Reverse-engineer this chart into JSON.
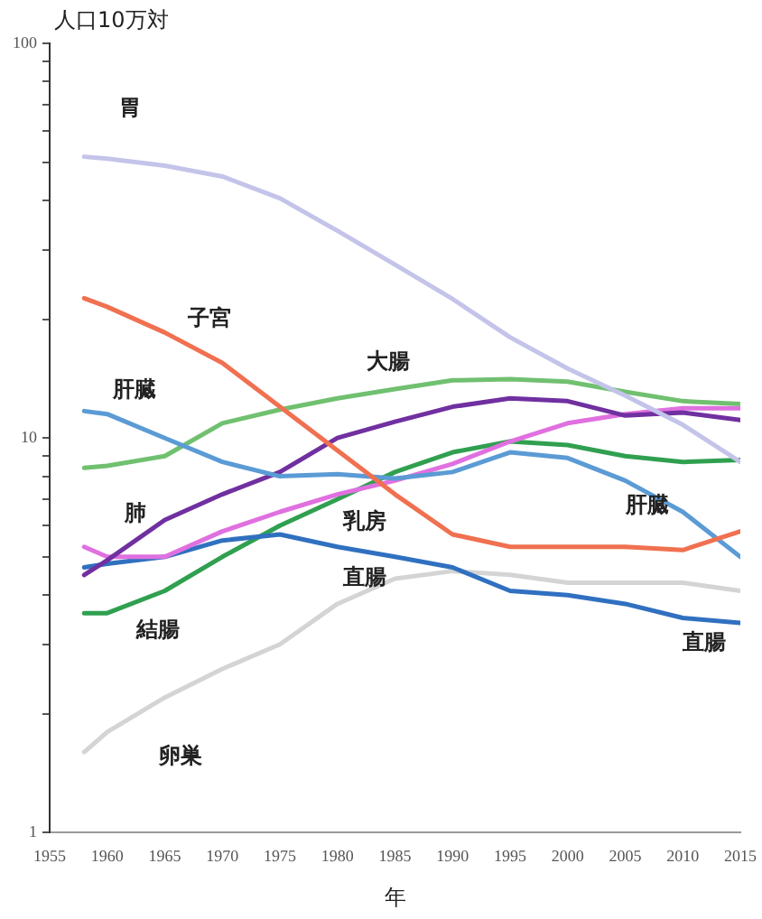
{
  "chart_data": {
    "type": "line",
    "ylabel": "人口10万対",
    "xlabel": "年",
    "x": [
      1958,
      1960,
      1965,
      1970,
      1975,
      1980,
      1985,
      1990,
      1995,
      2000,
      2005,
      2010,
      2015
    ],
    "xlim": [
      1955,
      2015
    ],
    "xticks": [
      1955,
      1960,
      1965,
      1970,
      1975,
      1980,
      1985,
      1990,
      1995,
      2000,
      2005,
      2010,
      2015
    ],
    "ylim": [
      1,
      100
    ],
    "log": true,
    "yticks": [
      1,
      {
        "value": 2,
        "label": null
      },
      {
        "value": 3,
        "label": null
      },
      {
        "value": 4,
        "label": null
      },
      {
        "value": 5,
        "label": null
      },
      {
        "value": 6,
        "label": null
      },
      {
        "value": 7,
        "label": null
      },
      {
        "value": 8,
        "label": null
      },
      {
        "value": 9,
        "label": null
      },
      10,
      {
        "value": 20,
        "label": null
      },
      {
        "value": 30,
        "label": null
      },
      {
        "value": 40,
        "label": null
      },
      {
        "value": 50,
        "label": null
      },
      {
        "value": 60,
        "label": null
      },
      {
        "value": 70,
        "label": null
      },
      {
        "value": 80,
        "label": null
      },
      {
        "value": 90,
        "label": null
      },
      100
    ],
    "grid": false,
    "legend": false,
    "marker": "none",
    "line_style": "solid",
    "series": [
      {
        "name": "胃",
        "color": "#c4c4ea",
        "values": [
          51.6,
          51,
          49,
          46,
          40.5,
          33.5,
          27.5,
          22.5,
          18,
          15,
          12.8,
          10.8,
          8.7
        ]
      },
      {
        "name": "子宮",
        "color": "#f07050",
        "values": [
          22.6,
          21.5,
          18.5,
          15.5,
          12,
          9.3,
          7.2,
          5.7,
          5.3,
          5.3,
          5.3,
          5.2,
          5.8
        ]
      },
      {
        "name": "肝臓",
        "color": "#5b9bd5",
        "values": [
          11.7,
          11.5,
          10,
          8.7,
          8.0,
          8.1,
          7.9,
          8.2,
          9.2,
          8.9,
          7.8,
          6.5,
          5.0
        ]
      },
      {
        "name": "大腸",
        "color": "#70c070",
        "values": [
          8.4,
          8.5,
          9.0,
          10.9,
          11.8,
          12.6,
          13.3,
          14.0,
          14.1,
          13.9,
          13.1,
          12.4,
          12.2
        ]
      },
      {
        "name": "肺",
        "color": "#7030a0",
        "values": [
          4.5,
          4.9,
          6.2,
          7.2,
          8.2,
          10.0,
          11.0,
          12.0,
          12.6,
          12.4,
          11.4,
          11.6,
          11.1
        ]
      },
      {
        "name": "乳房",
        "color": "#e070e0",
        "values": [
          5.3,
          5.0,
          5.0,
          5.8,
          6.5,
          7.2,
          7.8,
          8.6,
          9.8,
          10.9,
          11.5,
          11.9,
          11.9
        ]
      },
      {
        "name": "直腸",
        "color": "#3070c0",
        "values": [
          4.7,
          4.8,
          5.0,
          5.5,
          5.7,
          5.3,
          5.0,
          4.7,
          4.1,
          4.0,
          3.8,
          3.5,
          3.4
        ]
      },
      {
        "name": "結腸",
        "color": "#30a050",
        "values": [
          3.6,
          3.6,
          4.1,
          5.0,
          6.0,
          7.0,
          8.2,
          9.2,
          9.8,
          9.6,
          9.0,
          8.7,
          8.8
        ]
      },
      {
        "name": "卵巣",
        "color": "#d4d4d4",
        "values": [
          1.6,
          1.8,
          2.2,
          2.6,
          3.0,
          3.8,
          4.4,
          4.6,
          4.5,
          4.3,
          4.3,
          4.3,
          4.1
        ]
      }
    ],
    "annotations": [
      {
        "text": "肝臓",
        "x": 2005,
        "y": 7.8
      },
      {
        "text": "直腸",
        "x": 2010,
        "y": 3.5
      }
    ]
  }
}
